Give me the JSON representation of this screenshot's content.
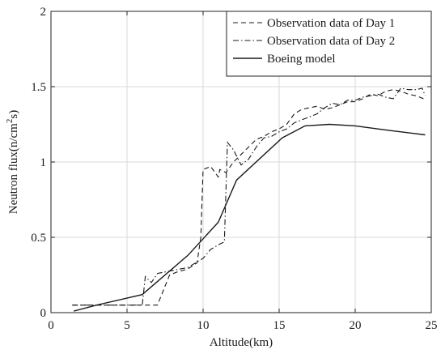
{
  "chart_data": {
    "type": "line",
    "xlabel": "Altitude(km)",
    "ylabel_parts": [
      "Neutron flux(n/cm",
      "2",
      "s)"
    ],
    "xlim": [
      0,
      25
    ],
    "ylim": [
      0,
      2
    ],
    "xticks": [
      0,
      5,
      10,
      15,
      20,
      25
    ],
    "yticks": [
      0,
      0.5,
      1,
      1.5,
      2
    ],
    "xtick_labels": [
      "0",
      "5",
      "10",
      "15",
      "20",
      "25"
    ],
    "ytick_labels": [
      "0",
      "0.5",
      "1",
      "1.5",
      "2"
    ],
    "grid": true,
    "legend_position": "top-right",
    "series": [
      {
        "name": "Observation data of Day 1",
        "style": "dashed",
        "x": [
          1.4,
          3.0,
          5.0,
          7.0,
          7.8,
          8.3,
          9.0,
          9.6,
          9.85,
          10.0,
          10.5,
          11.0,
          11.1,
          11.5,
          12.0,
          12.5,
          13.0,
          13.5,
          14.0,
          14.5,
          15.0,
          15.5,
          16.0,
          16.5,
          17.0,
          17.5,
          18.0,
          18.5,
          19.0,
          19.5,
          20.0,
          20.5,
          21.0,
          21.5,
          22.0,
          22.5,
          23.0,
          23.5,
          24.0,
          24.5
        ],
        "y": [
          0.05,
          0.05,
          0.05,
          0.05,
          0.25,
          0.27,
          0.29,
          0.33,
          0.5,
          0.95,
          0.97,
          0.9,
          0.95,
          0.93,
          1.0,
          1.05,
          1.1,
          1.15,
          1.17,
          1.2,
          1.22,
          1.25,
          1.32,
          1.35,
          1.36,
          1.37,
          1.35,
          1.36,
          1.38,
          1.4,
          1.4,
          1.42,
          1.45,
          1.44,
          1.47,
          1.48,
          1.47,
          1.45,
          1.44,
          1.42
        ]
      },
      {
        "name": "Observation data of Day 2",
        "style": "dashdot",
        "x": [
          1.4,
          3.0,
          5.0,
          6.0,
          6.2,
          6.6,
          7.0,
          7.5,
          8.0,
          8.5,
          9.0,
          9.5,
          10.0,
          10.5,
          11.0,
          11.4,
          11.6,
          12.0,
          12.5,
          13.0,
          13.5,
          14.0,
          14.5,
          15.0,
          15.5,
          16.0,
          16.5,
          17.0,
          17.5,
          18.0,
          18.5,
          19.0,
          19.5,
          20.0,
          20.5,
          21.0,
          21.5,
          22.0,
          22.5,
          23.0,
          23.5,
          24.0,
          24.4,
          24.6
        ],
        "y": [
          0.05,
          0.05,
          0.05,
          0.05,
          0.24,
          0.2,
          0.26,
          0.27,
          0.28,
          0.29,
          0.3,
          0.33,
          0.36,
          0.42,
          0.45,
          0.47,
          1.13,
          1.08,
          0.98,
          1.02,
          1.1,
          1.16,
          1.17,
          1.2,
          1.22,
          1.26,
          1.28,
          1.3,
          1.32,
          1.36,
          1.39,
          1.38,
          1.41,
          1.41,
          1.43,
          1.44,
          1.45,
          1.43,
          1.42,
          1.49,
          1.48,
          1.48,
          1.49,
          1.44
        ]
      },
      {
        "name": "Boeing model",
        "style": "solid",
        "x": [
          1.5,
          3.0,
          6.0,
          9.0,
          11.0,
          12.2,
          15.2,
          16.7,
          18.3,
          20.0,
          22.2,
          24.6
        ],
        "y": [
          0.01,
          0.05,
          0.12,
          0.38,
          0.6,
          0.88,
          1.16,
          1.24,
          1.25,
          1.24,
          1.21,
          1.18
        ]
      }
    ]
  }
}
